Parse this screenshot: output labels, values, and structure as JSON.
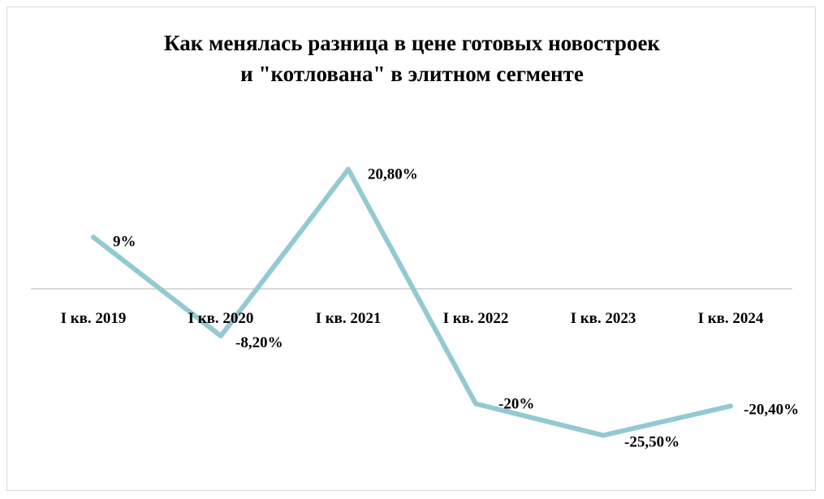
{
  "chart_data": {
    "type": "line",
    "title_lines": [
      "Как менялась разница в цене готовых новостроек",
      "и \"котлована\" в элитном сегменте"
    ],
    "categories": [
      "I кв. 2019",
      "I кв. 2020",
      "I кв. 2021",
      "I кв. 2022",
      "I кв. 2023",
      "I кв. 2024"
    ],
    "series": [
      {
        "values": [
          9,
          -8.2,
          20.8,
          -20,
          -25.5,
          -20.4
        ],
        "data_labels": [
          "9%",
          "-8,20%",
          "20,80%",
          "-20%",
          "-25,50%",
          "-20,40%"
        ],
        "color": "#93c9d3"
      }
    ],
    "ylim": [
      -28,
      24
    ],
    "grid": false,
    "legend": "none",
    "axis_color": "#d9d9d9"
  }
}
